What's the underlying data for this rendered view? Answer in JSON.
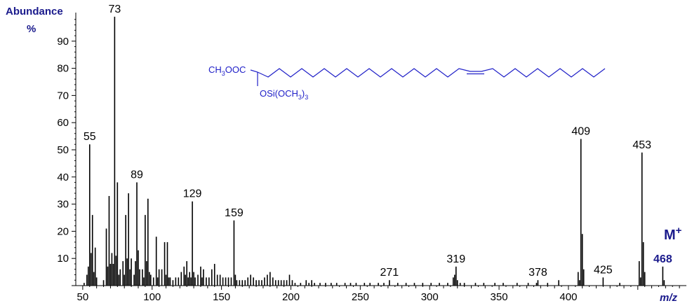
{
  "chart_data": {
    "type": "bar",
    "ylabel": "Abundance",
    "ylabel_unit": "%",
    "xlabel": "m/z",
    "xlim": [
      45,
      485
    ],
    "ylim": [
      0,
      100
    ],
    "x_ticks": [
      50,
      100,
      150,
      200,
      250,
      300,
      350,
      400
    ],
    "y_ticks": [
      10,
      20,
      30,
      40,
      50,
      60,
      70,
      80,
      90
    ],
    "grid": false,
    "legend": "none",
    "color": "#000000",
    "peak_labels": [
      {
        "mz": 55,
        "text": "55"
      },
      {
        "mz": 73,
        "text": "73"
      },
      {
        "mz": 89,
        "text": "89"
      },
      {
        "mz": 129,
        "text": "129"
      },
      {
        "mz": 159,
        "text": "159"
      },
      {
        "mz": 271,
        "text": "271"
      },
      {
        "mz": 319,
        "text": "319"
      },
      {
        "mz": 378,
        "text": "378"
      },
      {
        "mz": 409,
        "text": "409"
      },
      {
        "mz": 425,
        "text": "425"
      },
      {
        "mz": 453,
        "text": "453"
      },
      {
        "mz": 468,
        "text": "468",
        "highlight": true
      }
    ],
    "molecular_ion_label": {
      "base": "M",
      "sup": "+"
    },
    "structure": {
      "ester_group": {
        "base": "CH",
        "sub": "3",
        "rest": "OOC"
      },
      "substituent": {
        "base": "OSi(OCH",
        "sub": "3",
        "rest": ")"
      },
      "substituent_sub2": "3"
    },
    "peaks": [
      {
        "x": 51,
        "y": 1
      },
      {
        "x": 53,
        "y": 4
      },
      {
        "x": 54,
        "y": 7
      },
      {
        "x": 55,
        "y": 52
      },
      {
        "x": 56,
        "y": 12
      },
      {
        "x": 57,
        "y": 26
      },
      {
        "x": 58,
        "y": 5
      },
      {
        "x": 59,
        "y": 14
      },
      {
        "x": 60,
        "y": 3
      },
      {
        "x": 65,
        "y": 2
      },
      {
        "x": 67,
        "y": 21
      },
      {
        "x": 68,
        "y": 7
      },
      {
        "x": 69,
        "y": 33
      },
      {
        "x": 70,
        "y": 8
      },
      {
        "x": 71,
        "y": 12
      },
      {
        "x": 72,
        "y": 8
      },
      {
        "x": 73,
        "y": 99
      },
      {
        "x": 74,
        "y": 11
      },
      {
        "x": 75,
        "y": 38
      },
      {
        "x": 76,
        "y": 4
      },
      {
        "x": 77,
        "y": 6
      },
      {
        "x": 79,
        "y": 9
      },
      {
        "x": 80,
        "y": 4
      },
      {
        "x": 81,
        "y": 26
      },
      {
        "x": 82,
        "y": 10
      },
      {
        "x": 83,
        "y": 34
      },
      {
        "x": 84,
        "y": 6
      },
      {
        "x": 85,
        "y": 10
      },
      {
        "x": 87,
        "y": 4
      },
      {
        "x": 88,
        "y": 9
      },
      {
        "x": 89,
        "y": 38
      },
      {
        "x": 90,
        "y": 13
      },
      {
        "x": 91,
        "y": 6
      },
      {
        "x": 93,
        "y": 6
      },
      {
        "x": 94,
        "y": 3
      },
      {
        "x": 95,
        "y": 26
      },
      {
        "x": 96,
        "y": 9
      },
      {
        "x": 97,
        "y": 32
      },
      {
        "x": 98,
        "y": 5
      },
      {
        "x": 99,
        "y": 4
      },
      {
        "x": 101,
        "y": 3
      },
      {
        "x": 103,
        "y": 18
      },
      {
        "x": 104,
        "y": 3
      },
      {
        "x": 105,
        "y": 6
      },
      {
        "x": 107,
        "y": 6
      },
      {
        "x": 109,
        "y": 16
      },
      {
        "x": 110,
        "y": 4
      },
      {
        "x": 111,
        "y": 16
      },
      {
        "x": 112,
        "y": 3
      },
      {
        "x": 113,
        "y": 3
      },
      {
        "x": 115,
        "y": 2
      },
      {
        "x": 117,
        "y": 3
      },
      {
        "x": 119,
        "y": 3
      },
      {
        "x": 121,
        "y": 5
      },
      {
        "x": 123,
        "y": 7
      },
      {
        "x": 124,
        "y": 4
      },
      {
        "x": 125,
        "y": 9
      },
      {
        "x": 126,
        "y": 3
      },
      {
        "x": 127,
        "y": 5
      },
      {
        "x": 128,
        "y": 3
      },
      {
        "x": 129,
        "y": 31
      },
      {
        "x": 130,
        "y": 5
      },
      {
        "x": 131,
        "y": 3
      },
      {
        "x": 133,
        "y": 4
      },
      {
        "x": 135,
        "y": 7
      },
      {
        "x": 136,
        "y": 3
      },
      {
        "x": 137,
        "y": 6
      },
      {
        "x": 139,
        "y": 3
      },
      {
        "x": 141,
        "y": 3
      },
      {
        "x": 143,
        "y": 6
      },
      {
        "x": 145,
        "y": 8
      },
      {
        "x": 147,
        "y": 4
      },
      {
        "x": 149,
        "y": 4
      },
      {
        "x": 151,
        "y": 3
      },
      {
        "x": 153,
        "y": 3
      },
      {
        "x": 155,
        "y": 3
      },
      {
        "x": 157,
        "y": 3
      },
      {
        "x": 159,
        "y": 24
      },
      {
        "x": 160,
        "y": 4
      },
      {
        "x": 161,
        "y": 2
      },
      {
        "x": 163,
        "y": 2
      },
      {
        "x": 165,
        "y": 2
      },
      {
        "x": 167,
        "y": 2
      },
      {
        "x": 169,
        "y": 3
      },
      {
        "x": 171,
        "y": 4
      },
      {
        "x": 173,
        "y": 3
      },
      {
        "x": 175,
        "y": 2
      },
      {
        "x": 177,
        "y": 2
      },
      {
        "x": 179,
        "y": 2
      },
      {
        "x": 181,
        "y": 3
      },
      {
        "x": 183,
        "y": 4
      },
      {
        "x": 185,
        "y": 5
      },
      {
        "x": 187,
        "y": 3
      },
      {
        "x": 189,
        "y": 2
      },
      {
        "x": 191,
        "y": 2
      },
      {
        "x": 193,
        "y": 2
      },
      {
        "x": 195,
        "y": 2
      },
      {
        "x": 197,
        "y": 2
      },
      {
        "x": 199,
        "y": 4
      },
      {
        "x": 201,
        "y": 2
      },
      {
        "x": 203,
        "y": 1
      },
      {
        "x": 207,
        "y": 1
      },
      {
        "x": 211,
        "y": 2
      },
      {
        "x": 213,
        "y": 1
      },
      {
        "x": 215,
        "y": 2
      },
      {
        "x": 217,
        "y": 1
      },
      {
        "x": 221,
        "y": 1
      },
      {
        "x": 225,
        "y": 1
      },
      {
        "x": 229,
        "y": 1
      },
      {
        "x": 233,
        "y": 1
      },
      {
        "x": 239,
        "y": 1
      },
      {
        "x": 243,
        "y": 1
      },
      {
        "x": 247,
        "y": 1
      },
      {
        "x": 253,
        "y": 1
      },
      {
        "x": 257,
        "y": 1
      },
      {
        "x": 263,
        "y": 1
      },
      {
        "x": 267,
        "y": 1
      },
      {
        "x": 271,
        "y": 2
      },
      {
        "x": 277,
        "y": 1
      },
      {
        "x": 283,
        "y": 1
      },
      {
        "x": 289,
        "y": 1
      },
      {
        "x": 295,
        "y": 1
      },
      {
        "x": 301,
        "y": 1
      },
      {
        "x": 307,
        "y": 1
      },
      {
        "x": 313,
        "y": 1
      },
      {
        "x": 317,
        "y": 3
      },
      {
        "x": 318,
        "y": 4
      },
      {
        "x": 319,
        "y": 7
      },
      {
        "x": 320,
        "y": 2
      },
      {
        "x": 322,
        "y": 1
      },
      {
        "x": 325,
        "y": 1
      },
      {
        "x": 333,
        "y": 1
      },
      {
        "x": 339,
        "y": 1
      },
      {
        "x": 347,
        "y": 1
      },
      {
        "x": 353,
        "y": 1
      },
      {
        "x": 363,
        "y": 1
      },
      {
        "x": 371,
        "y": 1
      },
      {
        "x": 377,
        "y": 1
      },
      {
        "x": 378,
        "y": 2
      },
      {
        "x": 385,
        "y": 1
      },
      {
        "x": 393,
        "y": 2
      },
      {
        "x": 407,
        "y": 5
      },
      {
        "x": 408,
        "y": 2
      },
      {
        "x": 409,
        "y": 54
      },
      {
        "x": 410,
        "y": 19
      },
      {
        "x": 411,
        "y": 6
      },
      {
        "x": 425,
        "y": 3
      },
      {
        "x": 437,
        "y": 1
      },
      {
        "x": 451,
        "y": 9
      },
      {
        "x": 452,
        "y": 3
      },
      {
        "x": 453,
        "y": 49
      },
      {
        "x": 454,
        "y": 16
      },
      {
        "x": 455,
        "y": 5
      },
      {
        "x": 468,
        "y": 7
      },
      {
        "x": 469,
        "y": 2
      }
    ]
  }
}
